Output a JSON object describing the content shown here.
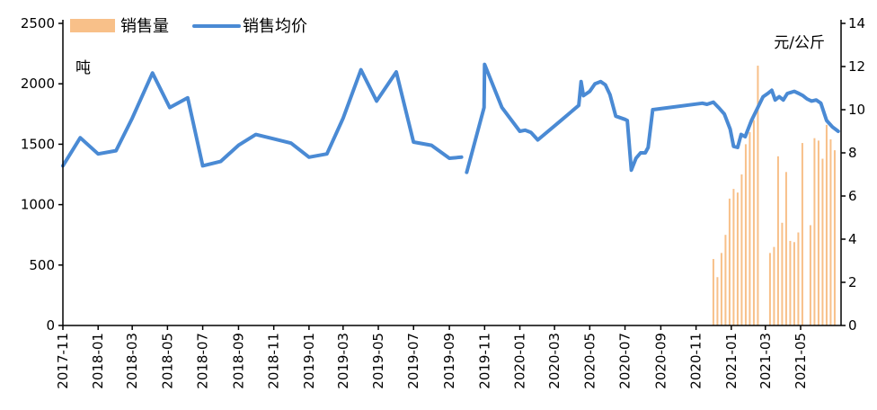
{
  "chart_data": {
    "type": "bar+line",
    "title": "",
    "left_axis_unit": "吨",
    "right_axis_unit": "元/公斤",
    "ylim_left": [
      0,
      2500
    ],
    "yticks_left": [
      "0",
      "500",
      "1000",
      "1500",
      "2000",
      "2500"
    ],
    "ylim_right": [
      0,
      14
    ],
    "yticks_right": [
      "0",
      "2",
      "4",
      "6",
      "8",
      "10",
      "12",
      "14"
    ],
    "x_start": "2017-11-01",
    "x_end": "2021-07-10",
    "xticks": [
      "2017-11",
      "2018-01",
      "2018-03",
      "2018-05",
      "2018-07",
      "2018-09",
      "2018-11",
      "2019-01",
      "2019-03",
      "2019-05",
      "2019-07",
      "2019-09",
      "2019-11",
      "2020-01",
      "2020-03",
      "2020-05",
      "2020-07",
      "2020-09",
      "2020-11",
      "2021-01",
      "2021-03",
      "2021-05"
    ],
    "legend": {
      "position": "top-left"
    },
    "series": [
      {
        "name": "销售量",
        "type": "bar",
        "axis": "left",
        "color": "#F8C089",
        "x": [
          "2020-12-01",
          "2020-12-08",
          "2020-12-15",
          "2020-12-22",
          "2020-12-29",
          "2021-01-05",
          "2021-01-12",
          "2021-01-19",
          "2021-01-26",
          "2021-02-02",
          "2021-02-09",
          "2021-02-16",
          "2021-03-09",
          "2021-03-16",
          "2021-03-23",
          "2021-03-30",
          "2021-04-06",
          "2021-04-13",
          "2021-04-20",
          "2021-04-27",
          "2021-05-04",
          "2021-05-18",
          "2021-05-25",
          "2021-06-01",
          "2021-06-08",
          "2021-06-15",
          "2021-06-22",
          "2021-06-29"
        ],
        "values": [
          550,
          400,
          600,
          750,
          1050,
          1130,
          1100,
          1250,
          1500,
          1600,
          1700,
          2150,
          600,
          650,
          1400,
          850,
          1270,
          700,
          690,
          770,
          1510,
          830,
          1550,
          1530,
          1380,
          1660,
          1540,
          1450
        ]
      },
      {
        "name": "销售均价",
        "type": "line",
        "axis": "right",
        "color": "#4A8AD4",
        "segments": [
          {
            "x": [
              "2017-11-01",
              "2017-12-01",
              "2018-01-01",
              "2018-02-01",
              "2018-03-01",
              "2018-04-05",
              "2018-05-05",
              "2018-06-05",
              "2018-07-01",
              "2018-08-01",
              "2018-09-01",
              "2018-10-01",
              "2018-11-01",
              "2018-12-01",
              "2019-01-01",
              "2019-02-01",
              "2019-03-01",
              "2019-04-01",
              "2019-04-28",
              "2019-06-01",
              "2019-07-01",
              "2019-08-01",
              "2019-09-01",
              "2019-09-22"
            ],
            "values": [
              7.4,
              8.7,
              7.95,
              8.1,
              9.6,
              11.7,
              10.1,
              10.55,
              7.4,
              7.6,
              8.35,
              8.85,
              8.65,
              8.45,
              7.8,
              7.95,
              9.6,
              11.85,
              10.4,
              11.75,
              8.5,
              8.35,
              7.75,
              7.8
            ]
          },
          {
            "x": [
              "2019-10-01",
              "2019-10-31",
              "2019-11-01",
              "2019-12-01",
              "2020-01-01",
              "2020-01-10",
              "2020-01-20",
              "2020-02-01",
              "2020-03-10",
              "2020-04-12",
              "2020-04-16",
              "2020-04-20",
              "2020-05-01",
              "2020-05-10",
              "2020-05-20",
              "2020-05-28",
              "2020-06-05",
              "2020-06-15",
              "2020-07-01",
              "2020-07-05",
              "2020-07-12",
              "2020-07-20",
              "2020-07-28",
              "2020-08-05",
              "2020-08-10",
              "2020-08-18",
              "2020-11-12",
              "2020-11-20",
              "2020-12-01",
              "2020-12-10",
              "2020-12-20",
              "2020-12-30",
              "2021-01-05",
              "2021-01-12",
              "2021-01-18",
              "2021-01-25",
              "2021-02-05",
              "2021-02-15",
              "2021-02-25",
              "2021-03-05",
              "2021-03-12",
              "2021-03-18",
              "2021-03-25",
              "2021-04-01",
              "2021-04-08",
              "2021-04-14",
              "2021-04-20",
              "2021-04-28",
              "2021-05-05",
              "2021-05-12",
              "2021-05-20",
              "2021-05-28",
              "2021-06-05",
              "2021-06-15",
              "2021-06-25",
              "2021-07-05"
            ],
            "values": [
              7.1,
              10.1,
              12.1,
              10.1,
              9.0,
              9.05,
              8.95,
              8.6,
              9.45,
              10.2,
              11.3,
              10.65,
              10.85,
              11.2,
              11.3,
              11.15,
              10.7,
              9.7,
              9.55,
              9.5,
              7.2,
              7.75,
              8.0,
              8.0,
              8.25,
              10.0,
              10.3,
              10.25,
              10.35,
              10.1,
              9.8,
              9.1,
              8.3,
              8.25,
              8.85,
              8.75,
              9.5,
              10.05,
              10.6,
              10.75,
              10.9,
              10.45,
              10.6,
              10.45,
              10.75,
              10.8,
              10.85,
              10.75,
              10.65,
              10.5,
              10.4,
              10.45,
              10.3,
              9.5,
              9.2,
              9.0
            ]
          }
        ]
      }
    ]
  }
}
